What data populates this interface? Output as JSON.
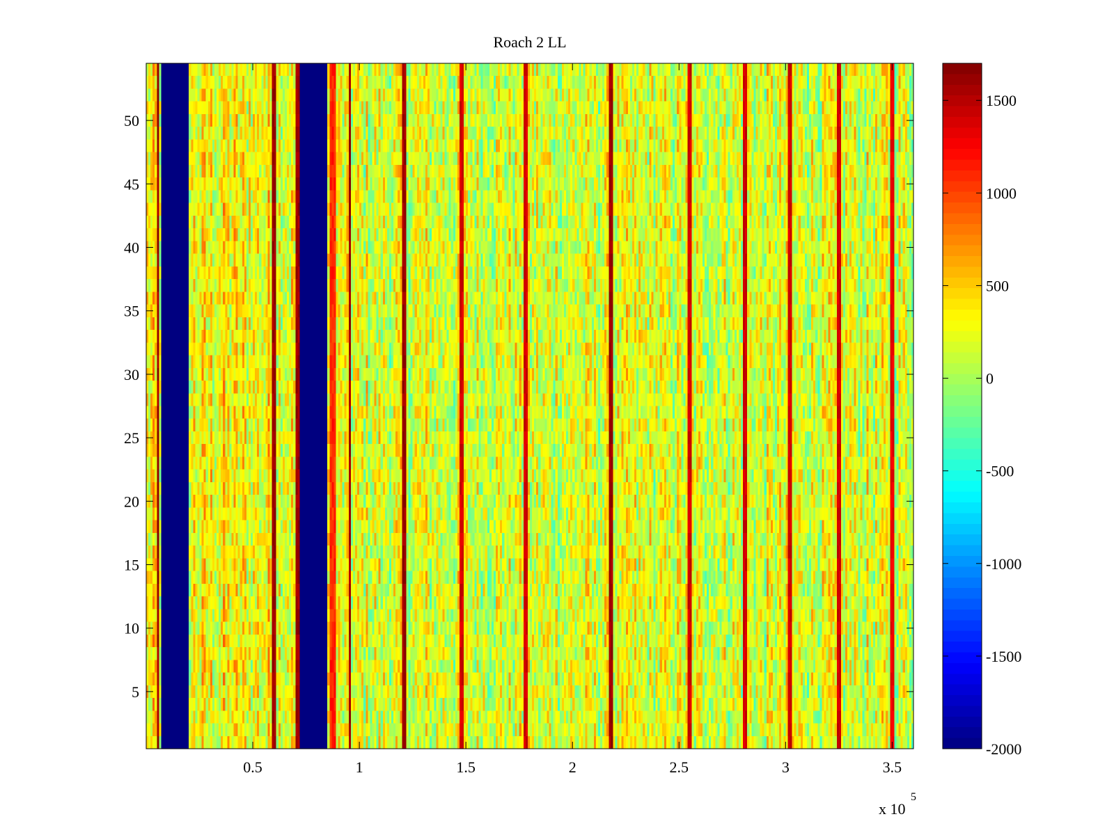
{
  "chart_data": {
    "type": "heatmap",
    "title": "Roach 2 LL",
    "xlabel": "",
    "ylabel": "",
    "x_multiplier_label": "x 10",
    "x_multiplier_exponent": "5",
    "xlim": [
      0,
      360000
    ],
    "ylim": [
      0.5,
      54.5
    ],
    "x_ticks": [
      {
        "value": 50000,
        "label": "0.5"
      },
      {
        "value": 100000,
        "label": "1"
      },
      {
        "value": 150000,
        "label": "1.5"
      },
      {
        "value": 200000,
        "label": "2"
      },
      {
        "value": 250000,
        "label": "2.5"
      },
      {
        "value": 300000,
        "label": "3"
      },
      {
        "value": 350000,
        "label": "3.5"
      }
    ],
    "y_ticks": [
      {
        "value": 5,
        "label": "5"
      },
      {
        "value": 10,
        "label": "10"
      },
      {
        "value": 15,
        "label": "15"
      },
      {
        "value": 20,
        "label": "20"
      },
      {
        "value": 25,
        "label": "25"
      },
      {
        "value": 30,
        "label": "30"
      },
      {
        "value": 35,
        "label": "35"
      },
      {
        "value": 40,
        "label": "40"
      },
      {
        "value": 45,
        "label": "45"
      },
      {
        "value": 50,
        "label": "50"
      }
    ],
    "rows": 54,
    "columns": 360,
    "background_level": 150,
    "blanked_bands": [
      {
        "x_start": 7000,
        "x_end": 19500,
        "value": -2000
      },
      {
        "x_start": 72500,
        "x_end": 85000,
        "value": -2000
      }
    ],
    "strong_lines": [
      {
        "x": 5500,
        "value": 1700
      },
      {
        "x": 60000,
        "value": 1700
      },
      {
        "x": 71000,
        "value": 1700
      },
      {
        "x": 95500,
        "value": 1700
      },
      {
        "x": 121000,
        "value": 1700
      },
      {
        "x": 148000,
        "value": 1500
      },
      {
        "x": 178000,
        "value": 1500
      },
      {
        "x": 218000,
        "value": 1700
      },
      {
        "x": 255000,
        "value": 1500
      },
      {
        "x": 281000,
        "value": 1500
      },
      {
        "x": 302000,
        "value": 1500
      },
      {
        "x": 325000,
        "value": 1500
      },
      {
        "x": 350000,
        "value": 1400
      }
    ],
    "warm_region": {
      "x_start": 86000,
      "x_end": 89000,
      "value": 1100
    },
    "colorbar": {
      "colormap": "jet",
      "range": [
        -2000,
        1700
      ],
      "ticks": [
        {
          "value": -2000,
          "label": "-2000"
        },
        {
          "value": -1500,
          "label": "-1500"
        },
        {
          "value": -1000,
          "label": "-1000"
        },
        {
          "value": -500,
          "label": "-500"
        },
        {
          "value": 0,
          "label": "0"
        },
        {
          "value": 500,
          "label": "500"
        },
        {
          "value": 1000,
          "label": "1000"
        },
        {
          "value": 1500,
          "label": "1500"
        }
      ]
    }
  }
}
